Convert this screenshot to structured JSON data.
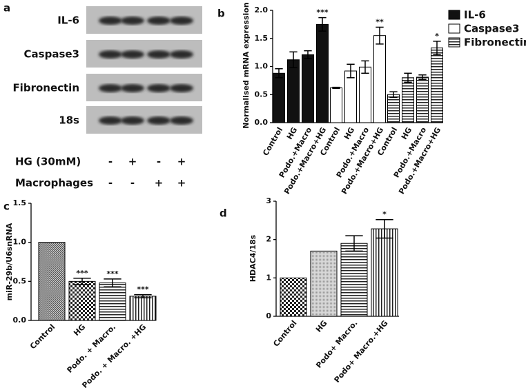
{
  "blot": {
    "panel": "a",
    "rows": [
      "IL-6",
      "Caspase3",
      "Fibronectin",
      "18s"
    ],
    "conditions": [
      {
        "label": "HG (30mM)",
        "signs": [
          "-",
          "+",
          "-",
          "+"
        ]
      },
      {
        "label": "Macrophages",
        "signs": [
          "-",
          "-",
          "+",
          "+"
        ]
      }
    ]
  },
  "chart_data": [
    {
      "type": "grouped-bar",
      "panel": "b",
      "y_label": "Normalised mRNA expression",
      "categories": [
        "Control",
        "HG",
        "Podo.+Macro",
        "Podo.+Macro+HG"
      ],
      "ylim": [
        0,
        2.0
      ],
      "yticks": [
        {
          "value": 0,
          "label": "0.0"
        },
        0.5,
        {
          "value": 1,
          "label": "1.0"
        },
        1.5,
        {
          "value": 2,
          "label": "2.0"
        }
      ],
      "series": [
        {
          "name": "IL-6",
          "pattern": "solid",
          "values": [
            0.88,
            1.12,
            1.21,
            1.75
          ],
          "errors": [
            0.08,
            0.14,
            0.07,
            0.12
          ],
          "annotations": [
            null,
            null,
            null,
            "***"
          ]
        },
        {
          "name": "Caspase3",
          "pattern": "white",
          "values": [
            0.62,
            0.92,
            0.99,
            1.55
          ],
          "errors": [
            0.01,
            0.12,
            0.11,
            0.15
          ],
          "annotations": [
            null,
            null,
            null,
            "**"
          ]
        },
        {
          "name": "Fibronectin",
          "pattern": "hstripe",
          "values": [
            0.5,
            0.8,
            0.81,
            1.33
          ],
          "errors": [
            0.05,
            0.08,
            0.04,
            0.12
          ],
          "annotations": [
            null,
            null,
            null,
            "*"
          ]
        }
      ],
      "legend": "right"
    },
    {
      "type": "bar",
      "panel": "c",
      "y_label": "miR-29b/U6snRNA",
      "categories": [
        "Control",
        "HG",
        "Podo. + Macro.",
        "Podo. + Macro. +HG"
      ],
      "ylim": [
        0,
        1.5
      ],
      "yticks": [
        {
          "value": 0,
          "label": "0.0"
        },
        0.5,
        {
          "value": 1,
          "label": "1.0"
        },
        1.5
      ],
      "values": [
        1.0,
        0.5,
        0.48,
        0.31
      ],
      "errors": [
        0,
        0.04,
        0.05,
        0.02
      ],
      "annotations": [
        null,
        "***",
        "***",
        "***"
      ],
      "patterns": [
        "fine",
        "checker",
        "hstripe",
        "vstripe"
      ]
    },
    {
      "type": "bar",
      "panel": "d",
      "y_label": "HDAC4/18s",
      "categories": [
        "Control",
        "HG",
        "Podo+ Macro.",
        "Podo+ Macro.+HG"
      ],
      "ylim": [
        0,
        3
      ],
      "yticks": [
        0,
        1,
        2,
        3
      ],
      "values": [
        1.0,
        1.7,
        1.9,
        2.28
      ],
      "errors": [
        0,
        0,
        0.2,
        0.24
      ],
      "annotations": [
        null,
        null,
        null,
        "*"
      ],
      "patterns": [
        "checker",
        "grey",
        "hstripe",
        "vstripe"
      ]
    }
  ]
}
